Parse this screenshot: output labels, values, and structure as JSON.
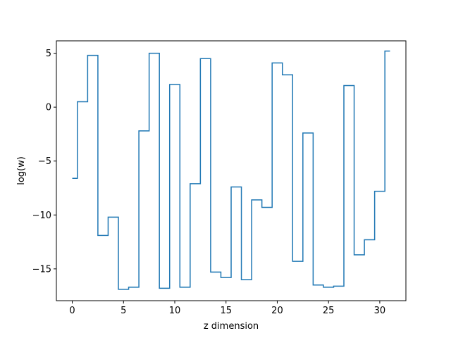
{
  "chart_data": {
    "type": "line",
    "drawstyle": "steps-mid",
    "title": "",
    "xlabel": "z dimension",
    "ylabel": "log(w)",
    "xlim": [
      -1.55,
      32.55
    ],
    "ylim": [
      -17.95,
      6.15
    ],
    "xticks": [
      0,
      5,
      10,
      15,
      20,
      25,
      30
    ],
    "xtick_labels": [
      "0",
      "5",
      "10",
      "15",
      "20",
      "25",
      "30"
    ],
    "yticks": [
      5,
      0,
      -5,
      -10,
      -15
    ],
    "ytick_labels": [
      "5",
      "0",
      "−5",
      "−10",
      "−15"
    ],
    "grid": false,
    "legend": "none",
    "series": [
      {
        "color": "#1f77b4",
        "x": [
          0,
          1,
          2,
          3,
          4,
          5,
          6,
          7,
          8,
          9,
          10,
          11,
          12,
          13,
          14,
          15,
          16,
          17,
          18,
          19,
          20,
          21,
          22,
          23,
          24,
          25,
          26,
          27,
          28,
          29,
          30,
          31
        ],
        "y": [
          -6.6,
          0.5,
          4.8,
          -11.9,
          -10.2,
          -16.9,
          -16.7,
          -2.2,
          5.0,
          -16.8,
          2.1,
          -16.7,
          -7.1,
          4.5,
          -15.3,
          -15.8,
          -7.4,
          -16.0,
          -8.6,
          -9.3,
          4.1,
          3.0,
          -14.3,
          -2.4,
          -16.5,
          -16.7,
          -16.6,
          2.0,
          -13.7,
          -12.3,
          -7.8,
          5.2
        ]
      }
    ]
  }
}
